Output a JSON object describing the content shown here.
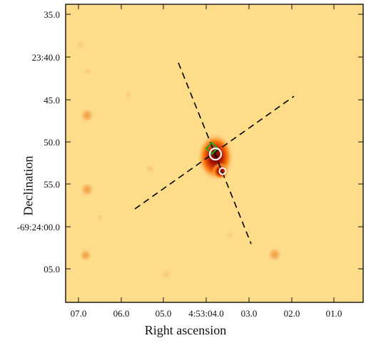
{
  "axes": {
    "xlabel": "Right ascension",
    "ylabel": "Declination",
    "xticks": [
      "07.0",
      "06.0",
      "05.0",
      "4:53:04.0",
      "03.0",
      "02.0",
      "01.0"
    ],
    "yticks": [
      "35.0",
      "23:40.0",
      "45.0",
      "50.0",
      "55.0",
      "-69:24:00.0",
      "05.0"
    ]
  },
  "colors": {
    "background_field": "#fddc8a",
    "source_core": "#8b0000",
    "source_halo": "#ff6a00",
    "dashed_line": "#000000",
    "marker_circle": "#ffffff",
    "marker_diamond": "#22aa22"
  }
}
